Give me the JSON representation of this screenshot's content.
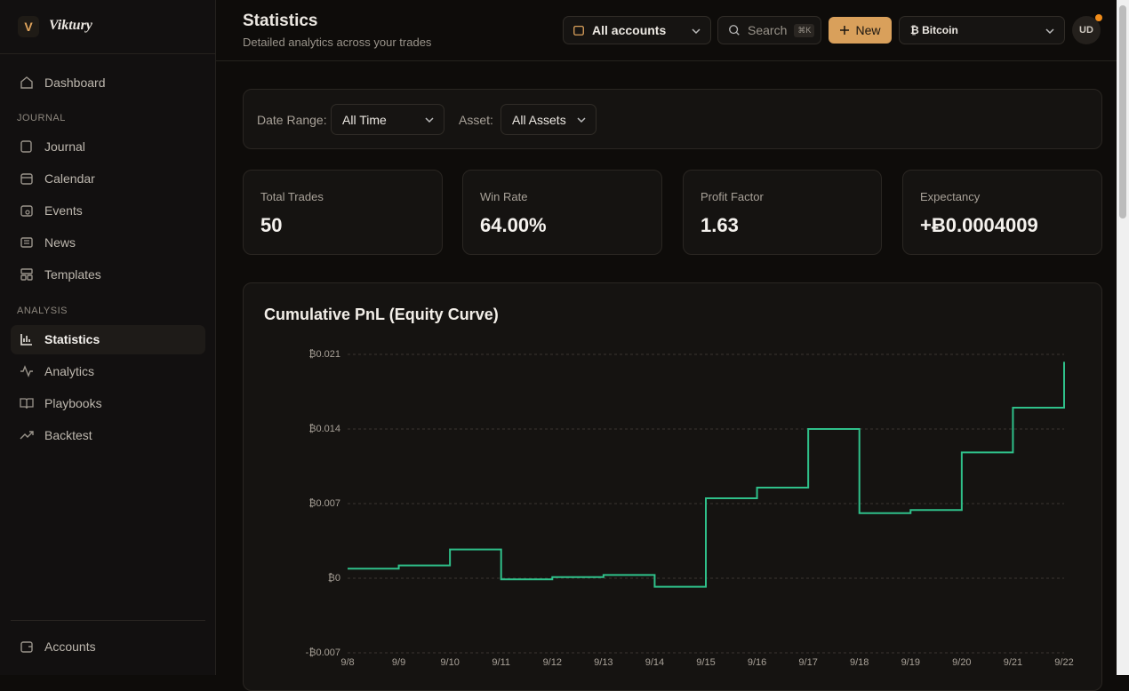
{
  "sidebar": {
    "logo": "V",
    "brand": "Viktury",
    "items": [
      "Dashboard"
    ],
    "sections": [
      {
        "heading": "JOURNAL",
        "items": [
          "Journal",
          "Calendar",
          "Events",
          "News",
          "Templates"
        ]
      },
      {
        "heading": "ANALYSIS",
        "items": [
          "Statistics",
          "Analytics",
          "Playbooks",
          "Backtest"
        ]
      }
    ],
    "footer": "Accounts"
  },
  "header": {
    "title": "Statistics",
    "subtitle": "Detailed analytics across your trades",
    "account": "All accounts",
    "search": "Search",
    "shortcut": "⌘K",
    "new": "New",
    "asset": "₿ Bitcoin",
    "avatar": "UD"
  },
  "filters": {
    "date_label": "Date Range:",
    "date_value": "All Time",
    "asset_label": "Asset:",
    "asset_value": "All Assets"
  },
  "stats": [
    {
      "label": "Total Trades",
      "value": "50"
    },
    {
      "label": "Win Rate",
      "value": "64.00%"
    },
    {
      "label": "Profit Factor",
      "value": "1.63"
    },
    {
      "label": "Expectancy",
      "value": "+Ƀ0.0004009"
    }
  ],
  "chart_data": {
    "type": "line",
    "step": true,
    "title": "Cumulative PnL (Equity Curve)",
    "categories": [
      "9/8",
      "9/9",
      "9/10",
      "9/11",
      "9/12",
      "9/13",
      "9/14",
      "9/15",
      "9/16",
      "9/17",
      "9/18",
      "9/19",
      "9/20",
      "9/21",
      "9/22"
    ],
    "values": [
      0.0009,
      0.0012,
      0.0027,
      -0.0001,
      0.0001,
      0.0003,
      -0.0008,
      0.0075,
      0.0085,
      0.014,
      0.0061,
      0.0064,
      0.0118,
      0.016,
      0.0203
    ],
    "color": "#2fc08a",
    "ylim": [
      -0.007,
      0.021
    ],
    "yticks": [
      {
        "value": -0.007,
        "label": "-₿0.007"
      },
      {
        "value": 0,
        "label": "₿0"
      },
      {
        "value": 0.007,
        "label": "₿0.007"
      },
      {
        "value": 0.014,
        "label": "₿0.014"
      },
      {
        "value": 0.021,
        "label": "₿0.021"
      }
    ],
    "grid": true
  }
}
